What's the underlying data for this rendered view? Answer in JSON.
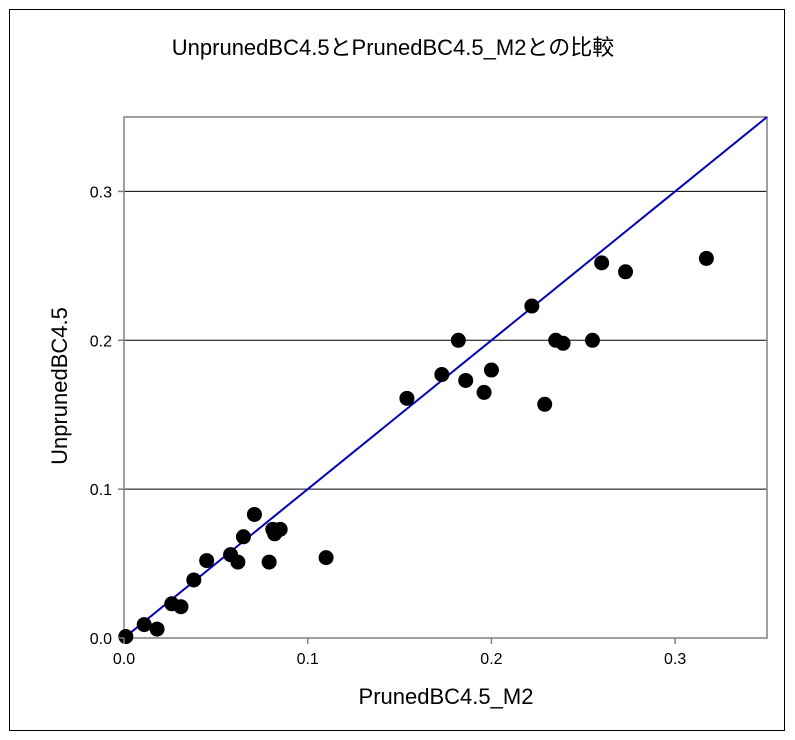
{
  "chart_data": {
    "type": "scatter",
    "title": "UnprunedBC4.5とPrunedBC4.5_M2との比較",
    "xlabel": "PrunedBC4.5_M2",
    "ylabel": "UnprunedBC4.5",
    "xlim": [
      0,
      0.35
    ],
    "ylim": [
      0,
      0.35
    ],
    "xticks": [
      "0.0",
      "0.1",
      "0.2",
      "0.3"
    ],
    "yticks": [
      "0.0",
      "0.1",
      "0.2",
      "0.3"
    ],
    "grid": "horizontal",
    "legend": "none",
    "marker_color": "#000000",
    "reference_line": {
      "from": [
        0,
        0
      ],
      "to": [
        0.35,
        0.35
      ],
      "color": "#0000cc"
    },
    "points": [
      {
        "x": 0.001,
        "y": 0.001
      },
      {
        "x": 0.011,
        "y": 0.009
      },
      {
        "x": 0.018,
        "y": 0.006
      },
      {
        "x": 0.026,
        "y": 0.023
      },
      {
        "x": 0.031,
        "y": 0.021
      },
      {
        "x": 0.038,
        "y": 0.039
      },
      {
        "x": 0.045,
        "y": 0.052
      },
      {
        "x": 0.058,
        "y": 0.056
      },
      {
        "x": 0.062,
        "y": 0.051
      },
      {
        "x": 0.065,
        "y": 0.068
      },
      {
        "x": 0.071,
        "y": 0.083
      },
      {
        "x": 0.079,
        "y": 0.051
      },
      {
        "x": 0.081,
        "y": 0.073
      },
      {
        "x": 0.082,
        "y": 0.07
      },
      {
        "x": 0.085,
        "y": 0.073
      },
      {
        "x": 0.11,
        "y": 0.054
      },
      {
        "x": 0.154,
        "y": 0.161
      },
      {
        "x": 0.173,
        "y": 0.177
      },
      {
        "x": 0.182,
        "y": 0.2
      },
      {
        "x": 0.186,
        "y": 0.173
      },
      {
        "x": 0.196,
        "y": 0.165
      },
      {
        "x": 0.2,
        "y": 0.18
      },
      {
        "x": 0.222,
        "y": 0.223
      },
      {
        "x": 0.229,
        "y": 0.157
      },
      {
        "x": 0.235,
        "y": 0.2
      },
      {
        "x": 0.239,
        "y": 0.198
      },
      {
        "x": 0.255,
        "y": 0.2
      },
      {
        "x": 0.26,
        "y": 0.252
      },
      {
        "x": 0.273,
        "y": 0.246
      },
      {
        "x": 0.317,
        "y": 0.255
      }
    ]
  }
}
